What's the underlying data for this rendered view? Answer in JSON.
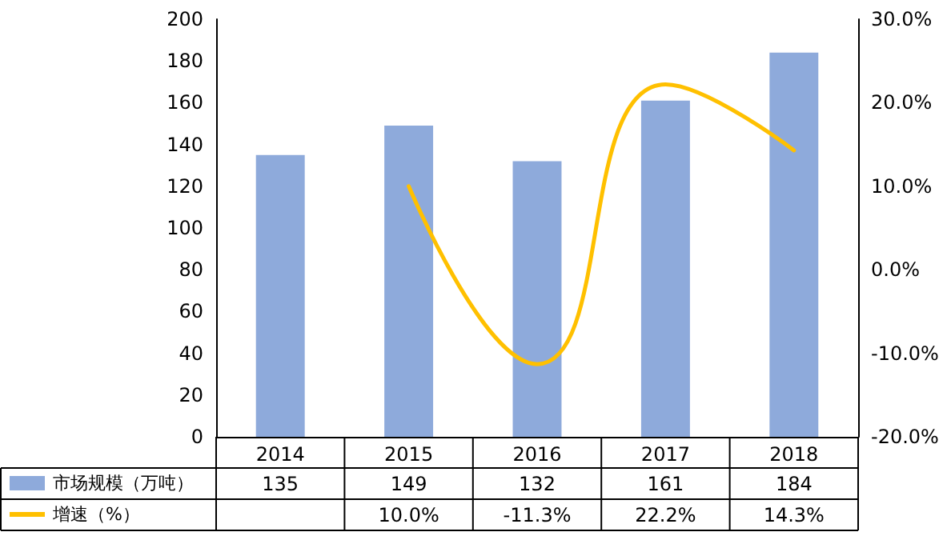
{
  "chart_data": {
    "type": "bar",
    "categories": [
      "2014",
      "2015",
      "2016",
      "2017",
      "2018"
    ],
    "series": [
      {
        "name": "市场规模（万吨）",
        "color": "#8eaadb",
        "values": [
          135,
          149,
          132,
          161,
          184
        ],
        "value_labels": [
          "135",
          "149",
          "132",
          "161",
          "184"
        ]
      },
      {
        "name": "增速（%）",
        "type": "line",
        "axis": "y2",
        "color": "#ffc000",
        "values": [
          null,
          10.0,
          -11.3,
          22.2,
          14.3
        ],
        "value_labels": [
          null,
          "10.0%",
          "-11.3%",
          "22.2%",
          "14.3%"
        ]
      }
    ],
    "ylim": [
      0,
      200
    ],
    "yticks": [
      0,
      20,
      40,
      60,
      80,
      100,
      120,
      140,
      160,
      180,
      200
    ],
    "y2lim": [
      -20,
      30
    ],
    "y2ticks": [
      {
        "value": -20,
        "label": "-20.0%"
      },
      {
        "value": -10,
        "label": "-10.0%"
      },
      {
        "value": 0,
        "label": "0.0%"
      },
      {
        "value": 10,
        "label": "10.0%"
      },
      {
        "value": 20,
        "label": "20.0%"
      },
      {
        "value": 30,
        "label": "30.0%"
      }
    ],
    "legend": "bottom left",
    "marker": "none",
    "line_style": "solid"
  }
}
